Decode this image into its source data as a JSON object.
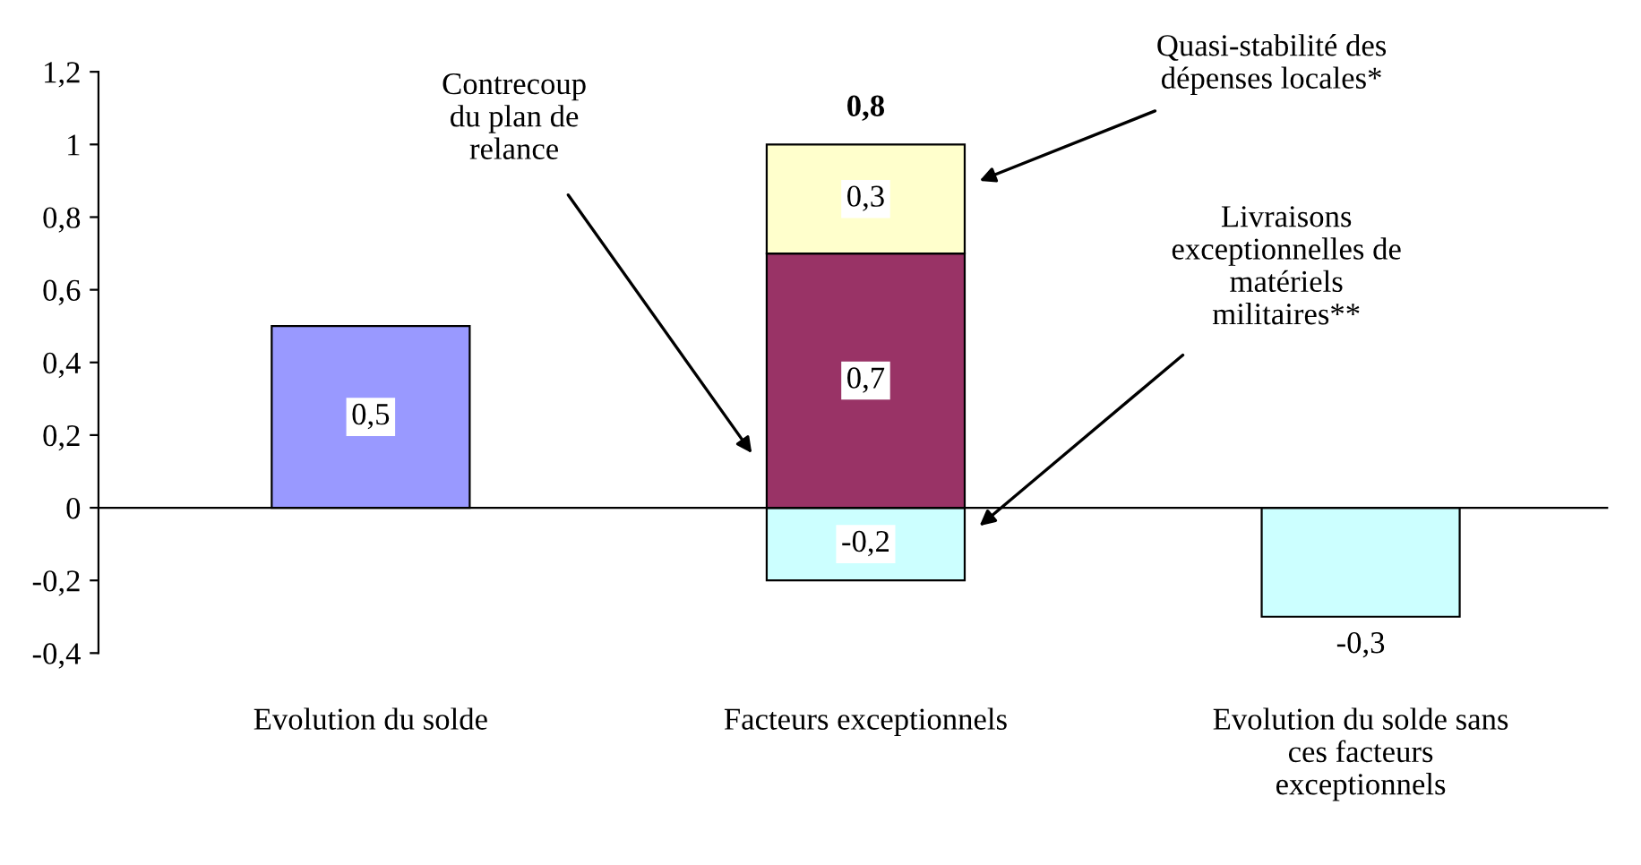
{
  "chart_data": {
    "type": "bar",
    "stacked": true,
    "categories": [
      "Evolution du solde",
      "Facteurs exceptionnels",
      "Evolution du solde sans ces facteurs exceptionnels"
    ],
    "series": [
      {
        "colors": [
          "#9999ff",
          "#ccffff",
          "#ccffff"
        ],
        "values": [
          0.5,
          -0.2,
          -0.3
        ],
        "value_labels": [
          "0,5",
          "-0,2",
          "-0,3"
        ]
      },
      {
        "color": "#993366",
        "values": [
          null,
          0.7,
          null
        ],
        "value_labels": [
          null,
          "0,7",
          null
        ]
      },
      {
        "color": "#ffffcc",
        "values": [
          null,
          0.3,
          null
        ],
        "value_labels": [
          null,
          "0,3",
          null
        ]
      }
    ],
    "totals": [
      null,
      "0,8",
      null
    ],
    "ylim": [
      -0.4,
      1.2
    ],
    "yticks": [
      {
        "value": -0.4,
        "label": "-0,4"
      },
      {
        "value": -0.2,
        "label": "-0,2"
      },
      {
        "value": 0,
        "label": "0"
      },
      {
        "value": 0.2,
        "label": "0,2"
      },
      {
        "value": 0.4,
        "label": "0,4"
      },
      {
        "value": 0.6,
        "label": "0,6"
      },
      {
        "value": 0.8,
        "label": "0,8"
      },
      {
        "value": 1,
        "label": "1"
      },
      {
        "value": 1.2,
        "label": "1,2"
      }
    ],
    "ref_lines": [
      {
        "axis": "y",
        "value": 0,
        "color": "#000000"
      }
    ],
    "annotations": [
      "Contrecoup du plan de relance",
      "Quasi-stabilité des dépenses locales*",
      "Livraisons exceptionnelles de matériels militaires**"
    ],
    "grid": false,
    "legend": false
  }
}
